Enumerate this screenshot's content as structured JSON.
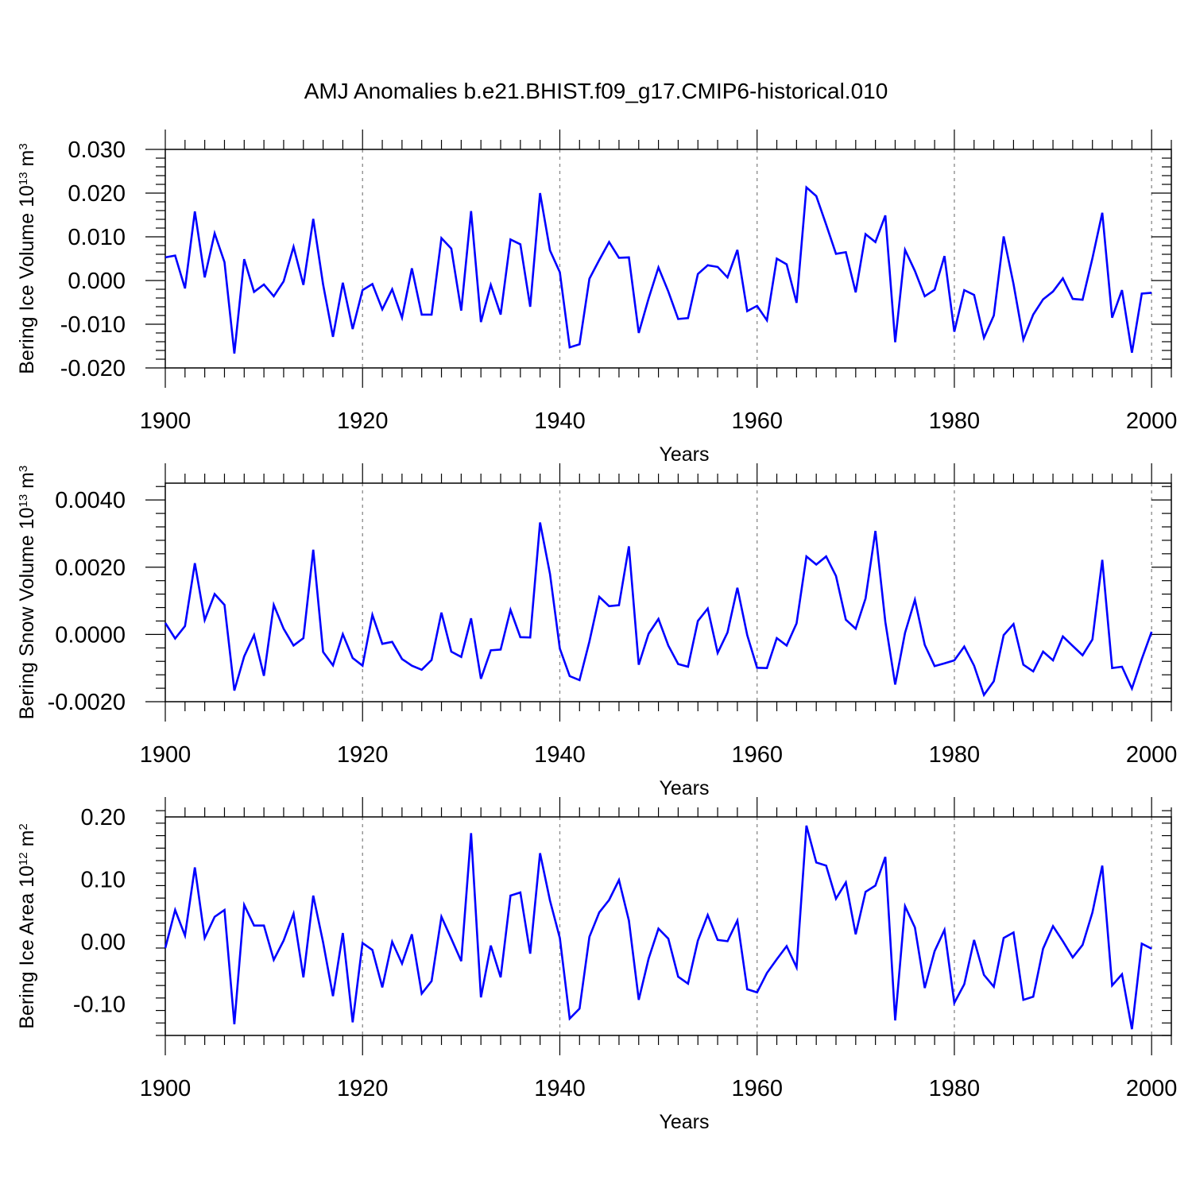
{
  "title": "AMJ Anomalies b.e21.BHIST.f09_g17.CMIP6-historical.010",
  "chart_data": [
    {
      "type": "line",
      "title": "AMJ Anomalies b.e21.BHIST.f09_g17.CMIP6-historical.010",
      "xlabel": "Years",
      "ylabel_main": "Bering Ice Volume 10",
      "ylabel_exp": "13",
      "ylabel_unit": "m",
      "ylabel_unit_exp": "3",
      "xlim": [
        1900,
        2002
      ],
      "ylim": [
        -0.02,
        0.03
      ],
      "yticks": [
        -0.02,
        -0.01,
        0.0,
        0.01,
        0.02,
        0.03
      ],
      "ytick_labels": [
        "-0.020",
        "-0.010",
        "0.000",
        "0.010",
        "0.020",
        "0.030"
      ],
      "xticks": [
        1900,
        1920,
        1940,
        1960,
        1980,
        2000
      ],
      "xtick_labels": [
        "1900",
        "1920",
        "1940",
        "1960",
        "1980",
        "2000"
      ],
      "color": "#0000ff",
      "series": [
        {
          "name": "Bering Ice Volume",
          "x_start": 1900,
          "values": [
            0.0053,
            0.0057,
            -0.0018,
            0.0158,
            0.0007,
            0.0108,
            0.0042,
            -0.0167,
            0.0049,
            -0.0026,
            -0.0009,
            -0.0036,
            -0.0002,
            0.0077,
            -0.001,
            0.0141,
            -0.0009,
            -0.0129,
            -0.0005,
            -0.0111,
            -0.0022,
            -0.0008,
            -0.0066,
            -0.002,
            -0.0085,
            0.0028,
            -0.0078,
            -0.0078,
            0.0097,
            0.0073,
            -0.0069,
            0.0159,
            -0.0095,
            -0.001,
            -0.0078,
            0.0094,
            0.0083,
            -0.006,
            0.02,
            0.0069,
            0.0019,
            -0.0153,
            -0.0146,
            0.0004,
            0.0047,
            0.0088,
            0.0052,
            0.0053,
            -0.012,
            -0.0041,
            0.003,
            -0.0025,
            -0.0088,
            -0.0086,
            0.0015,
            0.0035,
            0.0031,
            0.0007,
            0.007,
            -0.007,
            -0.0058,
            -0.0091,
            0.005,
            0.0037,
            -0.0051,
            0.0213,
            0.0193,
            0.0128,
            0.0061,
            0.0065,
            -0.0027,
            0.0106,
            0.0088,
            0.0149,
            -0.0141,
            0.007,
            0.0022,
            -0.0036,
            -0.0021,
            0.0056,
            -0.0117,
            -0.0022,
            -0.0033,
            -0.0131,
            -0.008,
            0.0101,
            -0.0008,
            -0.0135,
            -0.0078,
            -0.0043,
            -0.0025,
            0.0005,
            -0.0042,
            -0.0044,
            0.0051,
            0.0155,
            -0.0085,
            -0.0022,
            -0.0165,
            -0.003,
            -0.0028
          ]
        }
      ]
    },
    {
      "type": "line",
      "xlabel": "Years",
      "ylabel_main": "Bering Snow Volume 10",
      "ylabel_exp": "13",
      "ylabel_unit": "m",
      "ylabel_unit_exp": "3",
      "xlim": [
        1900,
        2002
      ],
      "ylim": [
        -0.002,
        0.0045
      ],
      "yticks": [
        -0.002,
        0.0,
        0.002,
        0.004
      ],
      "ytick_labels": [
        "-0.0020",
        "0.0000",
        "0.0020",
        "0.0040"
      ],
      "xticks": [
        1900,
        1920,
        1940,
        1960,
        1980,
        2000
      ],
      "xtick_labels": [
        "1900",
        "1920",
        "1940",
        "1960",
        "1980",
        "2000"
      ],
      "color": "#0000ff",
      "series": [
        {
          "name": "Bering Snow Volume",
          "x_start": 1900,
          "values": [
            0.00034,
            -0.00012,
            0.00025,
            0.00212,
            0.00043,
            0.0012,
            0.00088,
            -0.00167,
            -0.00065,
            -2e-05,
            -0.00123,
            0.00088,
            0.00017,
            -0.00033,
            -0.00011,
            0.00252,
            -0.00052,
            -0.00092,
            1e-05,
            -0.0007,
            -0.00093,
            0.00058,
            -0.00028,
            -0.00022,
            -0.00073,
            -0.00093,
            -0.00105,
            -0.00076,
            0.00065,
            -0.00051,
            -0.00067,
            0.00048,
            -0.00132,
            -0.00047,
            -0.00045,
            0.00073,
            -8e-05,
            -9e-05,
            0.00333,
            0.0018,
            -0.00042,
            -0.00124,
            -0.00136,
            -0.00021,
            0.00112,
            0.00084,
            0.00087,
            0.00262,
            -0.0009,
            2e-05,
            0.00046,
            -0.00033,
            -0.00088,
            -0.00096,
            0.0004,
            0.00077,
            -0.00055,
            6e-05,
            0.00139,
            -2e-05,
            -0.00099,
            -0.001,
            -0.00011,
            -0.00033,
            0.00033,
            0.00232,
            0.00208,
            0.00232,
            0.00174,
            0.00044,
            0.00017,
            0.00107,
            0.00308,
            0.00037,
            -0.00149,
            5e-05,
            0.00103,
            -0.00031,
            -0.00094,
            -0.00086,
            -0.00077,
            -0.00036,
            -0.00093,
            -0.0018,
            -0.00139,
            -2e-05,
            0.00031,
            -0.0009,
            -0.0011,
            -0.00051,
            -0.00077,
            -6e-05,
            -0.00034,
            -0.00062,
            -0.00015,
            0.00222,
            -0.001,
            -0.00096,
            -0.00161,
            -0.00073,
            8e-05
          ]
        }
      ]
    },
    {
      "type": "line",
      "xlabel": "Years",
      "ylabel_main": "Bering Ice Area 10",
      "ylabel_exp": "12",
      "ylabel_unit": "m",
      "ylabel_unit_exp": "2",
      "xlim": [
        1900,
        2002
      ],
      "ylim": [
        -0.15,
        0.2
      ],
      "yticks": [
        -0.1,
        0.0,
        0.1,
        0.2
      ],
      "ytick_labels": [
        "-0.10",
        "0.00",
        "0.10",
        "0.20"
      ],
      "xticks": [
        1900,
        1920,
        1940,
        1960,
        1980,
        2000
      ],
      "xtick_labels": [
        "1900",
        "1920",
        "1940",
        "1960",
        "1980",
        "2000"
      ],
      "color": "#0000ff",
      "series": [
        {
          "name": "Bering Ice Area",
          "x_start": 1900,
          "values": [
            -0.01,
            0.051,
            0.01,
            0.119,
            0.006,
            0.04,
            0.051,
            -0.132,
            0.059,
            0.026,
            0.026,
            -0.029,
            0.002,
            0.045,
            -0.057,
            0.074,
            -0.001,
            -0.087,
            0.014,
            -0.129,
            -0.002,
            -0.013,
            -0.073,
            0.0,
            -0.035,
            0.012,
            -0.083,
            -0.063,
            0.04,
            0.005,
            -0.031,
            0.174,
            -0.089,
            -0.006,
            -0.057,
            0.074,
            0.079,
            -0.019,
            0.142,
            0.066,
            0.006,
            -0.123,
            -0.107,
            0.008,
            0.047,
            0.067,
            0.099,
            0.034,
            -0.093,
            -0.027,
            0.021,
            0.005,
            -0.056,
            -0.067,
            0.002,
            0.043,
            0.003,
            0.001,
            0.034,
            -0.076,
            -0.081,
            -0.05,
            -0.028,
            -0.007,
            -0.041,
            0.186,
            0.127,
            0.122,
            0.069,
            0.095,
            0.012,
            0.08,
            0.09,
            0.136,
            -0.126,
            0.057,
            0.023,
            -0.074,
            -0.015,
            0.019,
            -0.098,
            -0.068,
            0.003,
            -0.053,
            -0.072,
            0.006,
            0.015,
            -0.093,
            -0.088,
            -0.011,
            0.025,
            0.001,
            -0.025,
            -0.005,
            0.047,
            0.122,
            -0.07,
            -0.052,
            -0.14,
            -0.003,
            -0.011
          ]
        }
      ]
    }
  ]
}
